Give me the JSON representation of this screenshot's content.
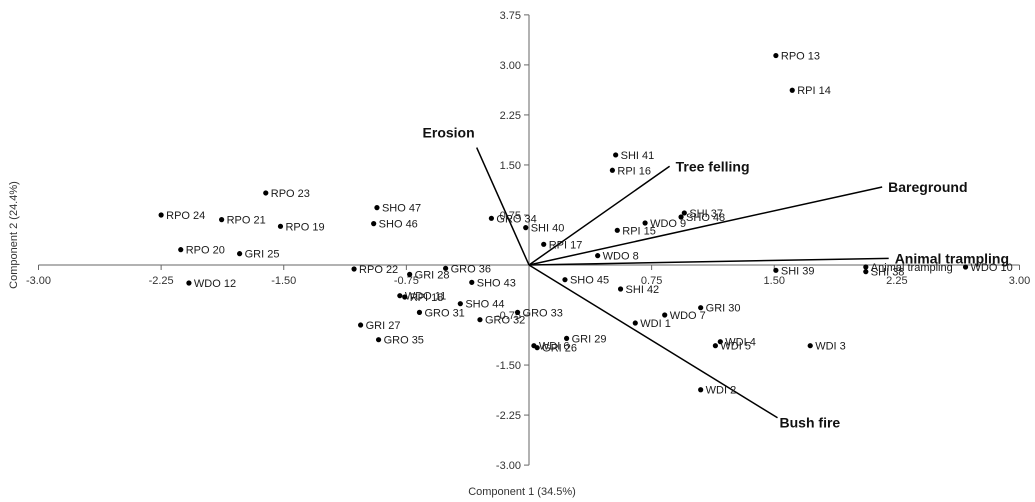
{
  "chart_data": {
    "type": "scatter",
    "subtype": "pca-biplot",
    "xlabel": "Component 1 (34.5%)",
    "ylabel": "Component 2 (24.4%)",
    "xlim": [
      -3.0,
      3.0
    ],
    "ylim": [
      -3.0,
      3.75
    ],
    "x_ticks": [
      "-3.00",
      "-2.25",
      "-1.50",
      "-0.75",
      "0.75",
      "1.50",
      "2.25",
      "3.00"
    ],
    "y_ticks": [
      "3.75",
      "3.00",
      "2.25",
      "1.50",
      "0.75",
      "-0.75",
      "-1.50",
      "-2.25",
      "-3.00"
    ],
    "x_tick_values": [
      -3.0,
      -2.25,
      -1.5,
      -0.75,
      0.75,
      1.5,
      2.25,
      3.0
    ],
    "y_tick_values": [
      3.75,
      3.0,
      2.25,
      1.5,
      0.75,
      -0.75,
      -1.5,
      -2.25,
      -3.0
    ],
    "grid": false,
    "point_color": "#000000",
    "vector_color": "#000000",
    "points": [
      {
        "label": "RPO 13",
        "x": 1.51,
        "y": 3.14
      },
      {
        "label": "RPI 14",
        "x": 1.61,
        "y": 2.62
      },
      {
        "label": "SHI 41",
        "x": 0.53,
        "y": 1.65
      },
      {
        "label": "RPI 16",
        "x": 0.51,
        "y": 1.42
      },
      {
        "label": "SHI 37",
        "x": 0.95,
        "y": 0.78
      },
      {
        "label": "SHO 48",
        "x": 0.93,
        "y": 0.72
      },
      {
        "label": "WDO 9",
        "x": 0.71,
        "y": 0.63
      },
      {
        "label": "RPI 15",
        "x": 0.54,
        "y": 0.52
      },
      {
        "label": "SHI 40",
        "x": -0.02,
        "y": 0.56
      },
      {
        "label": "RPI 17",
        "x": 0.09,
        "y": 0.31
      },
      {
        "label": "WDO 8",
        "x": 0.42,
        "y": 0.14
      },
      {
        "label": "SHI 39",
        "x": 1.51,
        "y": -0.08
      },
      {
        "label": "SHI 38",
        "x": 2.06,
        "y": -0.1
      },
      {
        "label": "Animal trampling",
        "x": 2.06,
        "y": -0.03
      },
      {
        "label": "WDO 10",
        "x": 2.67,
        "y": -0.03
      },
      {
        "label": "SHO 45",
        "x": 0.22,
        "y": -0.22
      },
      {
        "label": "SHI 42",
        "x": 0.56,
        "y": -0.36
      },
      {
        "label": "WDO 7",
        "x": 0.83,
        "y": -0.75
      },
      {
        "label": "WDI 1",
        "x": 0.65,
        "y": -0.87
      },
      {
        "label": "GRI 30",
        "x": 1.05,
        "y": -0.64
      },
      {
        "label": "GRI 29",
        "x": 0.23,
        "y": -1.1
      },
      {
        "label": "WDI 4",
        "x": 1.17,
        "y": -1.15
      },
      {
        "label": "WDI 5",
        "x": 1.14,
        "y": -1.21
      },
      {
        "label": "WDI 3",
        "x": 1.72,
        "y": -1.21
      },
      {
        "label": "WDI 2",
        "x": 1.05,
        "y": -1.87
      },
      {
        "label": "WDI 6",
        "x": 0.03,
        "y": -1.21
      },
      {
        "label": "GRI 26",
        "x": 0.05,
        "y": -1.24
      },
      {
        "label": "GRO 33",
        "x": -0.07,
        "y": -0.71
      },
      {
        "label": "GRO 32",
        "x": -0.3,
        "y": -0.82
      },
      {
        "label": "SHO 44",
        "x": -0.42,
        "y": -0.58
      },
      {
        "label": "SHO 43",
        "x": -0.35,
        "y": -0.26
      },
      {
        "label": "GRO 36",
        "x": -0.51,
        "y": -0.05
      },
      {
        "label": "GRO 34",
        "x": -0.23,
        "y": 0.7
      },
      {
        "label": "SHO 47",
        "x": -0.93,
        "y": 0.86
      },
      {
        "label": "SHO 46",
        "x": -0.95,
        "y": 0.62
      },
      {
        "label": "RPO 22",
        "x": -1.07,
        "y": -0.06
      },
      {
        "label": "GRI 28",
        "x": -0.73,
        "y": -0.14
      },
      {
        "label": "WDO 11",
        "x": -0.79,
        "y": -0.46
      },
      {
        "label": "RPI 18",
        "x": -0.76,
        "y": -0.48
      },
      {
        "label": "GRO 31",
        "x": -0.67,
        "y": -0.71
      },
      {
        "label": "GRI 27",
        "x": -1.03,
        "y": -0.9
      },
      {
        "label": "GRO 35",
        "x": -0.92,
        "y": -1.12
      },
      {
        "label": "RPO 23",
        "x": -1.61,
        "y": 1.08
      },
      {
        "label": "RPO 19",
        "x": -1.52,
        "y": 0.58
      },
      {
        "label": "RPO 21",
        "x": -1.88,
        "y": 0.68
      },
      {
        "label": "RPO 24",
        "x": -2.25,
        "y": 0.75
      },
      {
        "label": "RPO 20",
        "x": -2.13,
        "y": 0.23
      },
      {
        "label": "GRI 25",
        "x": -1.77,
        "y": 0.17
      },
      {
        "label": "WDO 12",
        "x": -2.08,
        "y": -0.27
      }
    ],
    "vectors": [
      {
        "label": "Erosion",
        "x": -0.32,
        "y": 1.76
      },
      {
        "label": "Tree felling",
        "x": 0.86,
        "y": 1.48
      },
      {
        "label": "Bareground",
        "x": 2.16,
        "y": 1.17
      },
      {
        "label": "Animal trampling",
        "x": 2.2,
        "y": 0.1
      },
      {
        "label": "Bush fire",
        "x": 1.52,
        "y": -2.29
      }
    ]
  }
}
